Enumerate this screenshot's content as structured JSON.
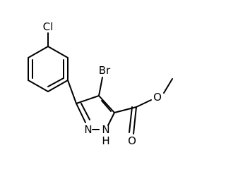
{
  "atoms": {
    "chlorine": "Cl",
    "bromine": "Br",
    "nitrogen_2": "N",
    "nitrogen_1": "N",
    "hydrogen_1": "H",
    "oxygen_carbonyl": "O",
    "oxygen_ester": "O"
  }
}
